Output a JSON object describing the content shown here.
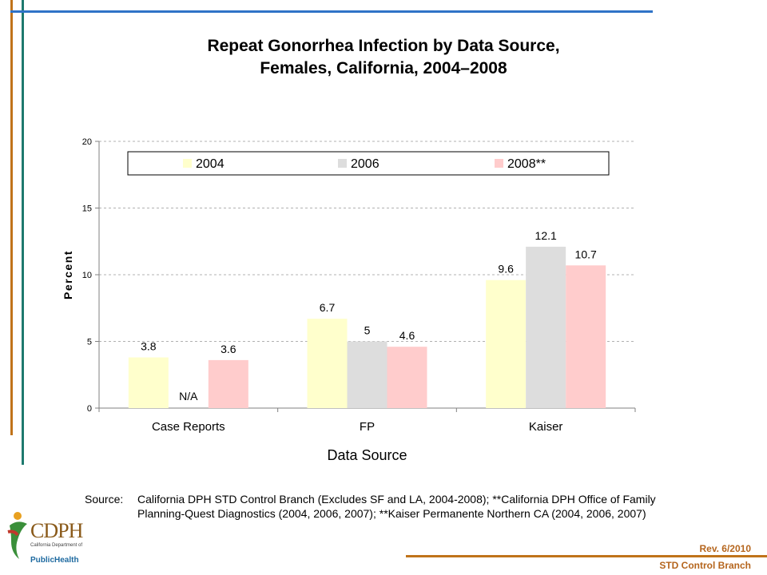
{
  "title_line1": "Repeat Gonorrhea Infection by Data Source,",
  "title_line2": "Females, California, 2004–2008",
  "chart_data": {
    "type": "bar",
    "categories": [
      "Case Reports",
      "FP",
      "Kaiser"
    ],
    "series": [
      {
        "name": "2004",
        "values": [
          3.8,
          6.7,
          9.6
        ],
        "labels": [
          "3.8",
          "6.7",
          "9.6"
        ],
        "color": "#ffffcc"
      },
      {
        "name": "2006",
        "values": [
          null,
          5.0,
          12.1
        ],
        "labels": [
          "N/A",
          "5",
          "12.1"
        ],
        "color": "#dddddd"
      },
      {
        "name": "2008**",
        "values": [
          3.6,
          4.6,
          10.7
        ],
        "labels": [
          "3.6",
          "4.6",
          "10.7"
        ],
        "color": "#ffcccc"
      }
    ],
    "xlabel": "Data Source",
    "ylabel": "Percent",
    "ylim": [
      0,
      20
    ],
    "yticks": [
      0,
      5,
      10,
      15,
      20
    ],
    "grid": true,
    "legend_position": "top"
  },
  "source_label": "Source:",
  "source_text": "California DPH STD Control Branch (Excludes SF and LA, 2004-2008); **California DPH Office of Family Planning-Quest Diagnostics (2004, 2006, 2007); **Kaiser Permanente Northern CA (2004, 2006, 2007)",
  "footer": {
    "rev": "Rev. 6/2010",
    "branch": "STD Control Branch"
  },
  "logo": {
    "name": "CDPH",
    "subtitle": "California Department of",
    "public_health": "PublicHealth"
  }
}
